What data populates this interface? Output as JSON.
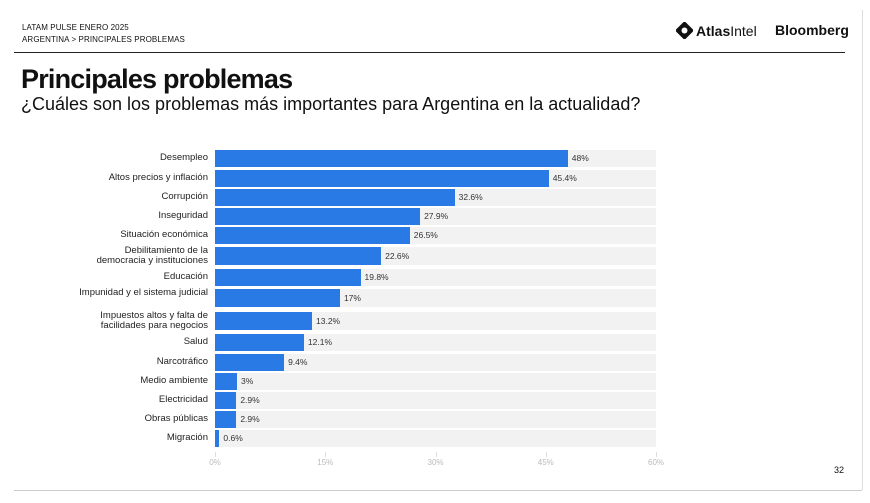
{
  "header": {
    "line1": "LATAM PULSE ENERO 2025",
    "line2": "ARGENTINA > PRINCIPALES PROBLEMAS",
    "logo1_bold": "Atlas",
    "logo1_light": "Intel",
    "logo2": "Bloomberg"
  },
  "page_number": "32",
  "chart_data": {
    "type": "bar",
    "orientation": "horizontal",
    "title": "Principales problemas",
    "subtitle": "¿Cuáles son los problemas más importantes para Argentina en la actualidad?",
    "categories": [
      "Desempleo",
      "Altos precios y inflación",
      "Corrupción",
      "Inseguridad",
      "Situación económica",
      "Debilitamiento de la democracia y instituciones",
      "Educación",
      "Impunidad y el sistema judicial",
      "Impuestos altos y falta de facilidades para negocios",
      "Salud",
      "Narcotráfico",
      "Medio ambiente",
      "Electricidad",
      "Obras públicas",
      "Migración"
    ],
    "values": [
      48,
      45.4,
      32.6,
      27.9,
      26.5,
      22.6,
      19.8,
      17,
      13.2,
      12.1,
      9.4,
      3,
      2.9,
      2.9,
      0.6
    ],
    "value_labels": [
      "48%",
      "45.4%",
      "32.6%",
      "27.9%",
      "26.5%",
      "22.6%",
      "19.8%",
      "17%",
      "13.2%",
      "12.1%",
      "9.4%",
      "3%",
      "2.9%",
      "2.9%",
      "0.6%"
    ],
    "xlim": [
      0,
      60
    ],
    "xticks": [
      "0%",
      "15%",
      "30%",
      "45%",
      "60%"
    ],
    "color": "#2a7ae6"
  }
}
